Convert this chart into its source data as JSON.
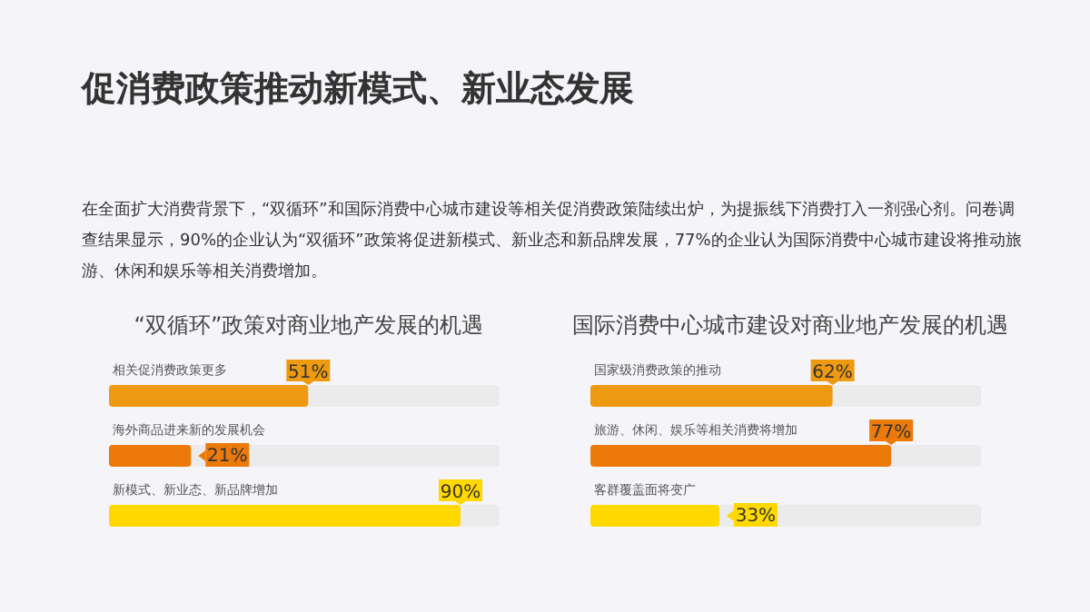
{
  "chart_data": [
    {
      "type": "other",
      "title": "促消费政策推动新模式、新业态发展",
      "subtitle": "在全面扩大消费背景下，“双循环”和国际消费中心城市建设等相关促消费政策陆续出炉，为提振线下消费打入一剂强心剂。问卷调查结果显示，90%的企业认为“双循环”政策将促进新模式、新业态和新品牌发展，77%的企业认为国际消费中心城市建设将推动旅游、休闲和娱乐等相关消费增加。"
    },
    {
      "type": "bar",
      "orientation": "horizontal",
      "title": "“双循环”政策对商业地产发展的机遇",
      "categories": [
        "相关促消费政策更多",
        "海外商品进来新的发展机会",
        "新模式、新业态、新品牌增加"
      ],
      "values": [
        51,
        21,
        90
      ],
      "colors": [
        "#ee9a10",
        "#ec7a0a",
        "#ffd800"
      ],
      "value_labels": [
        "51%",
        "21%",
        "90%"
      ],
      "xlim": [
        0,
        100
      ]
    },
    {
      "type": "bar",
      "orientation": "horizontal",
      "title": "国际消费中心城市建设对商业地产发展的机遇",
      "categories": [
        "国家级消费政策的推动",
        "旅游、休闲、娱乐等相关消费将增加",
        "客群覆盖面将变广"
      ],
      "values": [
        62,
        77,
        33
      ],
      "colors": [
        "#ee9a10",
        "#ec7a0a",
        "#ffd800"
      ],
      "value_labels": [
        "62%",
        "77%",
        "33%"
      ],
      "xlim": [
        0,
        100
      ]
    }
  ]
}
